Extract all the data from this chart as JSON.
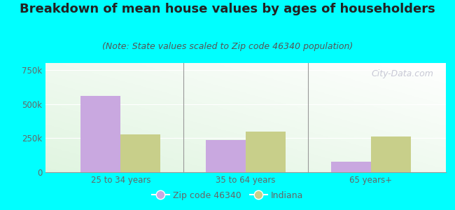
{
  "title": "Breakdown of mean house values by ages of householders",
  "subtitle": "(Note: State values scaled to Zip code 46340 population)",
  "categories": [
    "25 to 34 years",
    "35 to 64 years",
    "65 years+"
  ],
  "zip_values": [
    560000,
    235000,
    75000
  ],
  "indiana_values": [
    275000,
    300000,
    260000
  ],
  "zip_color": "#c9a8e0",
  "indiana_color": "#c8cf8a",
  "ylim": [
    0,
    800000
  ],
  "yticks": [
    0,
    250000,
    500000,
    750000
  ],
  "ytick_labels": [
    "0",
    "250k",
    "500k",
    "750k"
  ],
  "bg_color": "#00ffff",
  "plot_bg_color": "#d8f0d8",
  "title_fontsize": 13,
  "subtitle_fontsize": 9,
  "legend_label_zip": "Zip code 46340",
  "legend_label_indiana": "Indiana",
  "bar_width": 0.32,
  "watermark": "City-Data.com",
  "axis_color": "#999999",
  "tick_color": "#666666",
  "title_color": "#222222",
  "subtitle_color": "#555555"
}
